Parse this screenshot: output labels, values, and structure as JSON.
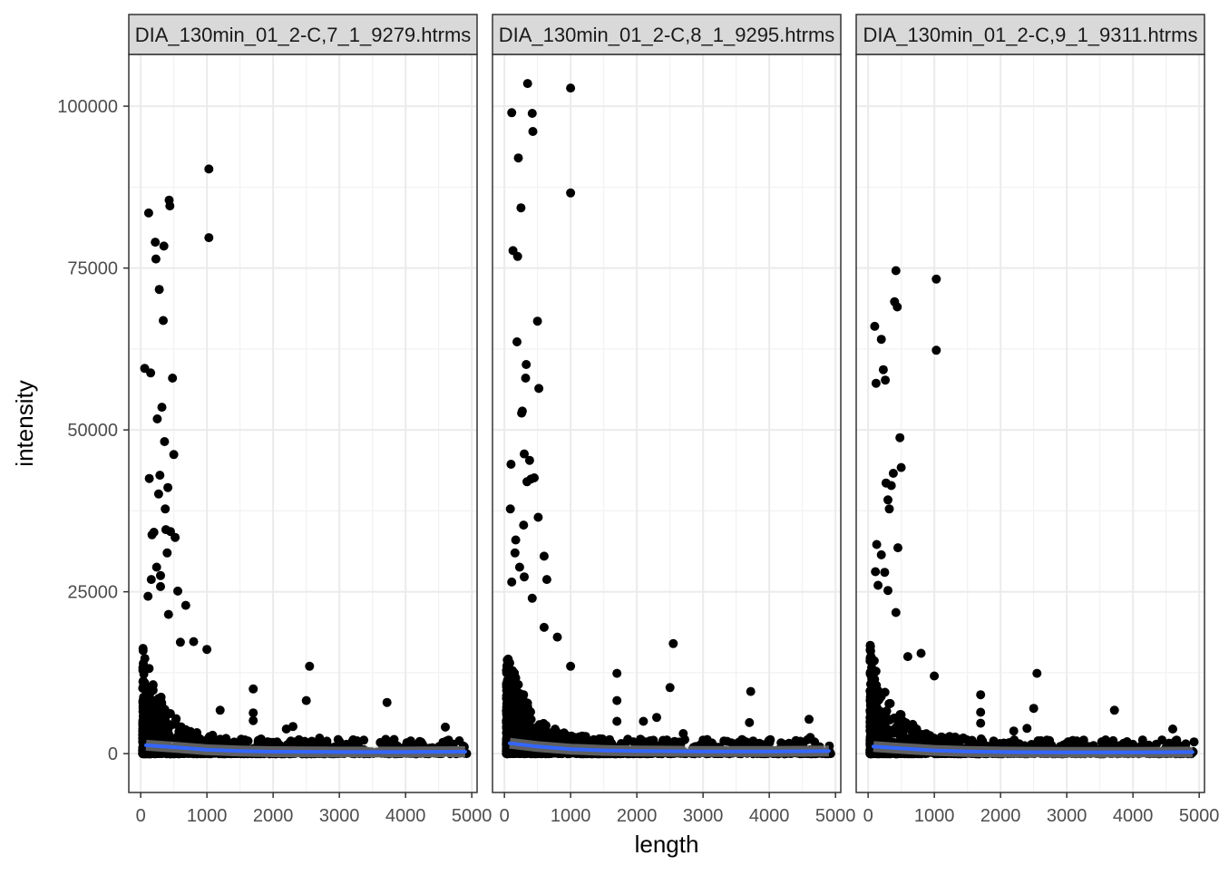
{
  "chart_data": {
    "type": "scatter",
    "xlabel": "length",
    "ylabel": "intensity",
    "x_ticks": [
      "0",
      "1000",
      "2000",
      "3000",
      "4000",
      "5000"
    ],
    "y_ticks": [
      "0",
      "25000",
      "50000",
      "75000",
      "100000"
    ],
    "xlim": [
      -180,
      5080
    ],
    "ylim": [
      -6000,
      108000
    ],
    "grid": true,
    "smooth_color": "#3366FF",
    "point_color": "#000000",
    "strip_fill": "#D9D9D9",
    "facets": [
      {
        "label": "DIA_130min_01_2-C,7_1_9279.htrms",
        "outliers": [
          [
            60,
            59500
          ],
          [
            120,
            83500
          ],
          [
            150,
            58800
          ],
          [
            130,
            42500
          ],
          [
            170,
            33800
          ],
          [
            200,
            34200
          ],
          [
            220,
            79000
          ],
          [
            230,
            76400
          ],
          [
            250,
            51700
          ],
          [
            270,
            40100
          ],
          [
            280,
            71700
          ],
          [
            290,
            43000
          ],
          [
            300,
            25800
          ],
          [
            320,
            53500
          ],
          [
            340,
            66900
          ],
          [
            350,
            78400
          ],
          [
            360,
            48200
          ],
          [
            370,
            37800
          ],
          [
            380,
            34600
          ],
          [
            400,
            31000
          ],
          [
            410,
            41100
          ],
          [
            430,
            85500
          ],
          [
            440,
            84600
          ],
          [
            450,
            34300
          ],
          [
            480,
            58000
          ],
          [
            500,
            46200
          ],
          [
            520,
            33400
          ],
          [
            560,
            25100
          ],
          [
            680,
            22900
          ],
          [
            1030,
            90300
          ],
          [
            1030,
            79700
          ],
          [
            110,
            24300
          ],
          [
            160,
            26900
          ],
          [
            240,
            28800
          ],
          [
            300,
            27500
          ],
          [
            420,
            21500
          ],
          [
            600,
            17200
          ],
          [
            800,
            17300
          ],
          [
            1000,
            16100
          ],
          [
            1200,
            6700
          ],
          [
            1700,
            10000
          ],
          [
            1700,
            6300
          ],
          [
            1700,
            5100
          ],
          [
            2200,
            3800
          ],
          [
            2300,
            4200
          ],
          [
            2500,
            8200
          ],
          [
            2550,
            13500
          ],
          [
            2700,
            2400
          ],
          [
            3000,
            1900
          ],
          [
            3700,
            2200
          ],
          [
            3720,
            7900
          ],
          [
            4600,
            4100
          ],
          [
            4650,
            2100
          ]
        ],
        "smooth": [
          [
            80,
            1300
          ],
          [
            500,
            1000
          ],
          [
            1000,
            600
          ],
          [
            1500,
            400
          ],
          [
            2000,
            300
          ],
          [
            3000,
            250
          ],
          [
            4000,
            250
          ],
          [
            4900,
            300
          ]
        ]
      },
      {
        "label": "DIA_130min_01_2-C,8_1_9295.htrms",
        "outliers": [
          [
            90,
            37800
          ],
          [
            100,
            44700
          ],
          [
            110,
            99000
          ],
          [
            130,
            77700
          ],
          [
            170,
            33000
          ],
          [
            190,
            63600
          ],
          [
            200,
            76800
          ],
          [
            210,
            92000
          ],
          [
            250,
            84300
          ],
          [
            260,
            52600
          ],
          [
            270,
            52900
          ],
          [
            290,
            35300
          ],
          [
            300,
            46300
          ],
          [
            320,
            58000
          ],
          [
            330,
            60100
          ],
          [
            340,
            42000
          ],
          [
            350,
            103500
          ],
          [
            380,
            45300
          ],
          [
            400,
            42400
          ],
          [
            420,
            98900
          ],
          [
            430,
            96100
          ],
          [
            450,
            42600
          ],
          [
            500,
            66800
          ],
          [
            520,
            56400
          ],
          [
            510,
            36500
          ],
          [
            600,
            30500
          ],
          [
            640,
            26900
          ],
          [
            1000,
            102800
          ],
          [
            1000,
            86600
          ],
          [
            110,
            26500
          ],
          [
            160,
            31000
          ],
          [
            230,
            28800
          ],
          [
            300,
            27300
          ],
          [
            420,
            24000
          ],
          [
            600,
            19500
          ],
          [
            800,
            18000
          ],
          [
            1000,
            13500
          ],
          [
            1700,
            12400
          ],
          [
            1700,
            8200
          ],
          [
            1700,
            5000
          ],
          [
            2100,
            5000
          ],
          [
            2300,
            5600
          ],
          [
            2500,
            10200
          ],
          [
            2550,
            17000
          ],
          [
            2700,
            3100
          ],
          [
            3000,
            2100
          ],
          [
            3700,
            4800
          ],
          [
            3720,
            9600
          ],
          [
            4600,
            5300
          ],
          [
            4620,
            2500
          ]
        ],
        "smooth": [
          [
            80,
            1600
          ],
          [
            500,
            1100
          ],
          [
            1000,
            700
          ],
          [
            1500,
            500
          ],
          [
            2000,
            400
          ],
          [
            3000,
            350
          ],
          [
            4000,
            350
          ],
          [
            4900,
            400
          ]
        ]
      },
      {
        "label": "DIA_130min_01_2-C,9_1_9311.htrms",
        "outliers": [
          [
            100,
            66000
          ],
          [
            110,
            28100
          ],
          [
            120,
            57200
          ],
          [
            130,
            32300
          ],
          [
            200,
            64000
          ],
          [
            230,
            59300
          ],
          [
            260,
            57700
          ],
          [
            270,
            41800
          ],
          [
            300,
            39200
          ],
          [
            320,
            37800
          ],
          [
            350,
            41400
          ],
          [
            380,
            43300
          ],
          [
            400,
            69800
          ],
          [
            420,
            74600
          ],
          [
            440,
            69000
          ],
          [
            450,
            31800
          ],
          [
            480,
            48800
          ],
          [
            500,
            44200
          ],
          [
            1030,
            73300
          ],
          [
            1030,
            62300
          ],
          [
            150,
            26000
          ],
          [
            200,
            30700
          ],
          [
            250,
            28000
          ],
          [
            300,
            25200
          ],
          [
            420,
            21800
          ],
          [
            600,
            15000
          ],
          [
            800,
            15500
          ],
          [
            1000,
            12000
          ],
          [
            1700,
            9100
          ],
          [
            1700,
            6400
          ],
          [
            1700,
            4700
          ],
          [
            2200,
            3500
          ],
          [
            2400,
            3900
          ],
          [
            2500,
            7000
          ],
          [
            2550,
            12400
          ],
          [
            2700,
            2100
          ],
          [
            3000,
            1600
          ],
          [
            3700,
            2000
          ],
          [
            3720,
            6700
          ],
          [
            4600,
            3800
          ],
          [
            4650,
            1900
          ]
        ],
        "smooth": [
          [
            80,
            1100
          ],
          [
            500,
            800
          ],
          [
            1000,
            500
          ],
          [
            1500,
            350
          ],
          [
            2000,
            250
          ],
          [
            3000,
            200
          ],
          [
            4000,
            200
          ],
          [
            4900,
            250
          ]
        ]
      }
    ]
  }
}
